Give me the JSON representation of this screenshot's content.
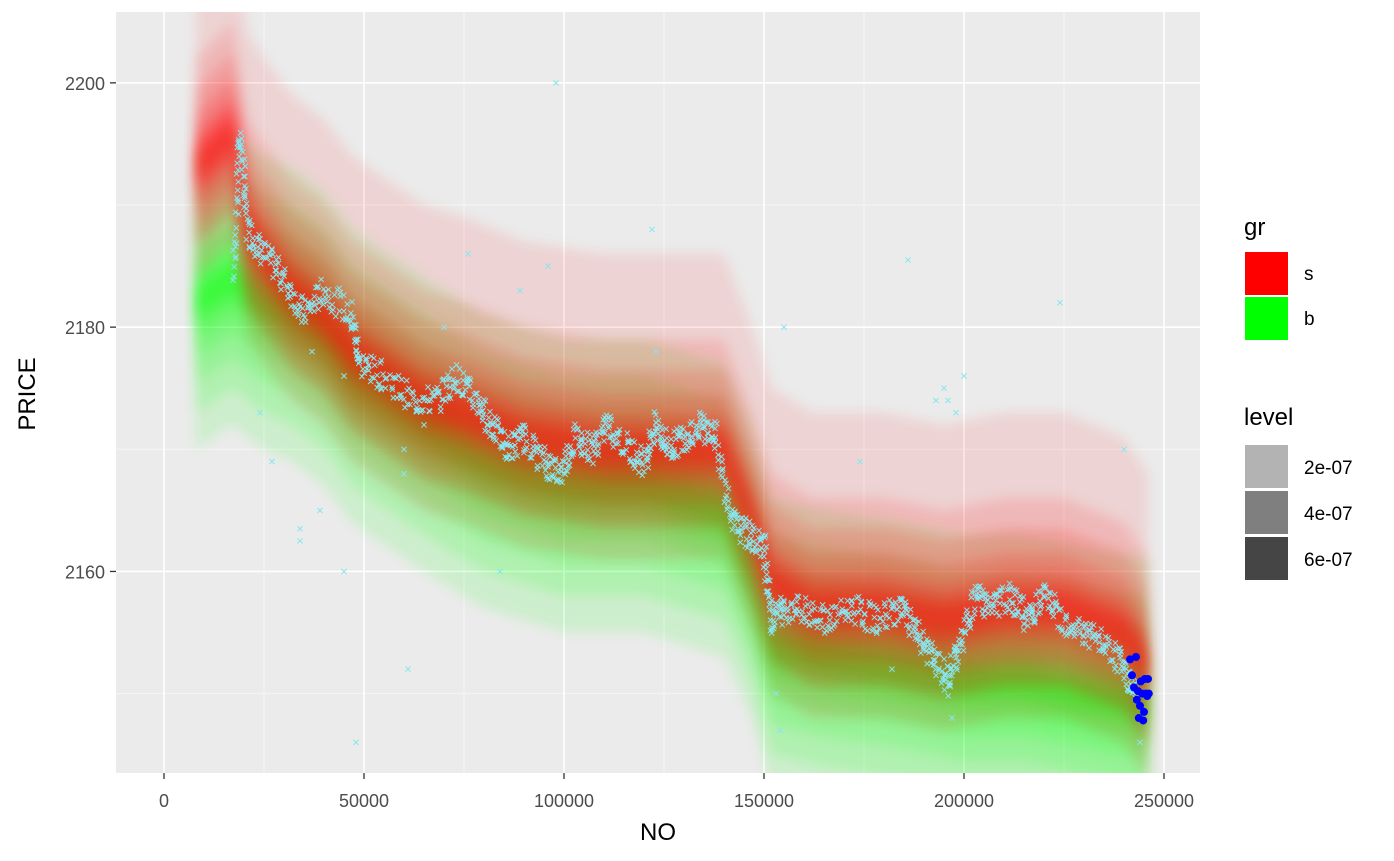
{
  "chart_data": {
    "type": "scatter",
    "title": "",
    "xlabel": "NO",
    "ylabel": "PRICE",
    "xlim": [
      -12000,
      259000
    ],
    "ylim": [
      2143.5,
      2205.8
    ],
    "x_ticks": [
      0,
      50000,
      100000,
      150000,
      200000,
      250000
    ],
    "x_tick_labels": [
      "0",
      "50000",
      "100000",
      "150000",
      "200000",
      "250000"
    ],
    "y_ticks": [
      2160,
      2180,
      2200
    ],
    "y_tick_labels": [
      "2160",
      "2180",
      "2200"
    ],
    "grid": true,
    "background": "#EBEBEB",
    "legend_position": "right",
    "legends": [
      {
        "title": "gr",
        "entries": [
          {
            "label": "s",
            "color": "#FF0000"
          },
          {
            "label": "b",
            "color": "#00FF00"
          }
        ]
      },
      {
        "title": "level",
        "entries": [
          {
            "label": "2e-07",
            "color": "#B3B3B3"
          },
          {
            "label": "4e-07",
            "color": "#7F7F7F"
          },
          {
            "label": "6e-07",
            "color": "#454545"
          }
        ]
      }
    ],
    "density_series": [
      {
        "name": "s",
        "color": "#FF0000",
        "ridge": [
          [
            8000,
            2193
          ],
          [
            17000,
            2196
          ],
          [
            21000,
            2188
          ],
          [
            25000,
            2186
          ],
          [
            32000,
            2183
          ],
          [
            40000,
            2181
          ],
          [
            47000,
            2178
          ],
          [
            56000,
            2176
          ],
          [
            65000,
            2174
          ],
          [
            75000,
            2173
          ],
          [
            90000,
            2171
          ],
          [
            110000,
            2170
          ],
          [
            130000,
            2170
          ],
          [
            140000,
            2170
          ],
          [
            147000,
            2164
          ],
          [
            152000,
            2159
          ],
          [
            162000,
            2157
          ],
          [
            180000,
            2157
          ],
          [
            195000,
            2156
          ],
          [
            210000,
            2157
          ],
          [
            225000,
            2157
          ],
          [
            240000,
            2155
          ],
          [
            246000,
            2152
          ]
        ]
      },
      {
        "name": "b",
        "color": "#00FF00",
        "ridge": [
          [
            8000,
            2182
          ],
          [
            17000,
            2184
          ],
          [
            25000,
            2182
          ],
          [
            32000,
            2181
          ],
          [
            40000,
            2179
          ],
          [
            47000,
            2176
          ],
          [
            56000,
            2174
          ],
          [
            65000,
            2172
          ],
          [
            80000,
            2169
          ],
          [
            100000,
            2167
          ],
          [
            120000,
            2167
          ],
          [
            140000,
            2165
          ],
          [
            147000,
            2160
          ],
          [
            152000,
            2154
          ],
          [
            165000,
            2153
          ],
          [
            185000,
            2152
          ],
          [
            200000,
            2151
          ],
          [
            215000,
            2151
          ],
          [
            230000,
            2150
          ],
          [
            246000,
            2149
          ]
        ]
      }
    ],
    "points_series": [
      {
        "name": "",
        "color": "#87E6F0",
        "marker": "x",
        "trend": [
          [
            17500,
            2184
          ],
          [
            19000,
            2196
          ],
          [
            21000,
            2188
          ],
          [
            25000,
            2186
          ],
          [
            30000,
            2184
          ],
          [
            35000,
            2181
          ],
          [
            40000,
            2183
          ],
          [
            47000,
            2181
          ],
          [
            49000,
            2177
          ],
          [
            55000,
            2176
          ],
          [
            62000,
            2174
          ],
          [
            68000,
            2174
          ],
          [
            73000,
            2176
          ],
          [
            78000,
            2174
          ],
          [
            82000,
            2172
          ],
          [
            86000,
            2170
          ],
          [
            90000,
            2171
          ],
          [
            95000,
            2169
          ],
          [
            99000,
            2168
          ],
          [
            103000,
            2171
          ],
          [
            107000,
            2170
          ],
          [
            111000,
            2172
          ],
          [
            116000,
            2170
          ],
          [
            120000,
            2169
          ],
          [
            123000,
            2172
          ],
          [
            126000,
            2170
          ],
          [
            130000,
            2171
          ],
          [
            134000,
            2172
          ],
          [
            138000,
            2171
          ],
          [
            142000,
            2164
          ],
          [
            146000,
            2163
          ],
          [
            150000,
            2162
          ],
          [
            152000,
            2156
          ],
          [
            155000,
            2157
          ],
          [
            160000,
            2157
          ],
          [
            166000,
            2156
          ],
          [
            172000,
            2157
          ],
          [
            178000,
            2156
          ],
          [
            184000,
            2157
          ],
          [
            188000,
            2155
          ],
          [
            192000,
            2153
          ],
          [
            196000,
            2151
          ],
          [
            199000,
            2154
          ],
          [
            203000,
            2158
          ],
          [
            207000,
            2157
          ],
          [
            212000,
            2158
          ],
          [
            216000,
            2156
          ],
          [
            220000,
            2158
          ],
          [
            225000,
            2156
          ],
          [
            230000,
            2155
          ],
          [
            235000,
            2154
          ],
          [
            240000,
            2152
          ],
          [
            243000,
            2150
          ]
        ],
        "outliers": [
          [
            98000,
            2200
          ],
          [
            122000,
            2188
          ],
          [
            76000,
            2186
          ],
          [
            96000,
            2185
          ],
          [
            89000,
            2183
          ],
          [
            186000,
            2185.5
          ],
          [
            224000,
            2182
          ],
          [
            155000,
            2180
          ],
          [
            70000,
            2180
          ],
          [
            123000,
            2178
          ],
          [
            37000,
            2178
          ],
          [
            45000,
            2176
          ],
          [
            200000,
            2176
          ],
          [
            195000,
            2175
          ],
          [
            193000,
            2174
          ],
          [
            196000,
            2174
          ],
          [
            198000,
            2173
          ],
          [
            24000,
            2173
          ],
          [
            65000,
            2172
          ],
          [
            112000,
            2171
          ],
          [
            240000,
            2170
          ],
          [
            60000,
            2170
          ],
          [
            27000,
            2169
          ],
          [
            60000,
            2168
          ],
          [
            39000,
            2165
          ],
          [
            34000,
            2163.5
          ],
          [
            34000,
            2162.5
          ],
          [
            45000,
            2160
          ],
          [
            84000,
            2160
          ],
          [
            61000,
            2152
          ],
          [
            153000,
            2150
          ],
          [
            182000,
            2152
          ],
          [
            174000,
            2169
          ],
          [
            48000,
            2146
          ],
          [
            154000,
            2147
          ],
          [
            197000,
            2148
          ],
          [
            244000,
            2146
          ]
        ]
      },
      {
        "name": "",
        "color": "#0000FF",
        "marker": "dot",
        "points": [
          [
            241500,
            2152.8
          ],
          [
            242000,
            2151.5
          ],
          [
            242500,
            2150.5
          ],
          [
            243000,
            2153
          ],
          [
            243200,
            2149.5
          ],
          [
            243500,
            2150.2
          ],
          [
            243700,
            2148
          ],
          [
            244000,
            2149
          ],
          [
            244200,
            2151
          ],
          [
            244500,
            2150
          ],
          [
            244800,
            2147.8
          ],
          [
            245000,
            2148.5
          ],
          [
            245200,
            2151.2
          ],
          [
            245500,
            2150
          ],
          [
            245800,
            2149.8
          ],
          [
            246000,
            2151.2
          ],
          [
            246200,
            2150
          ]
        ]
      }
    ]
  }
}
